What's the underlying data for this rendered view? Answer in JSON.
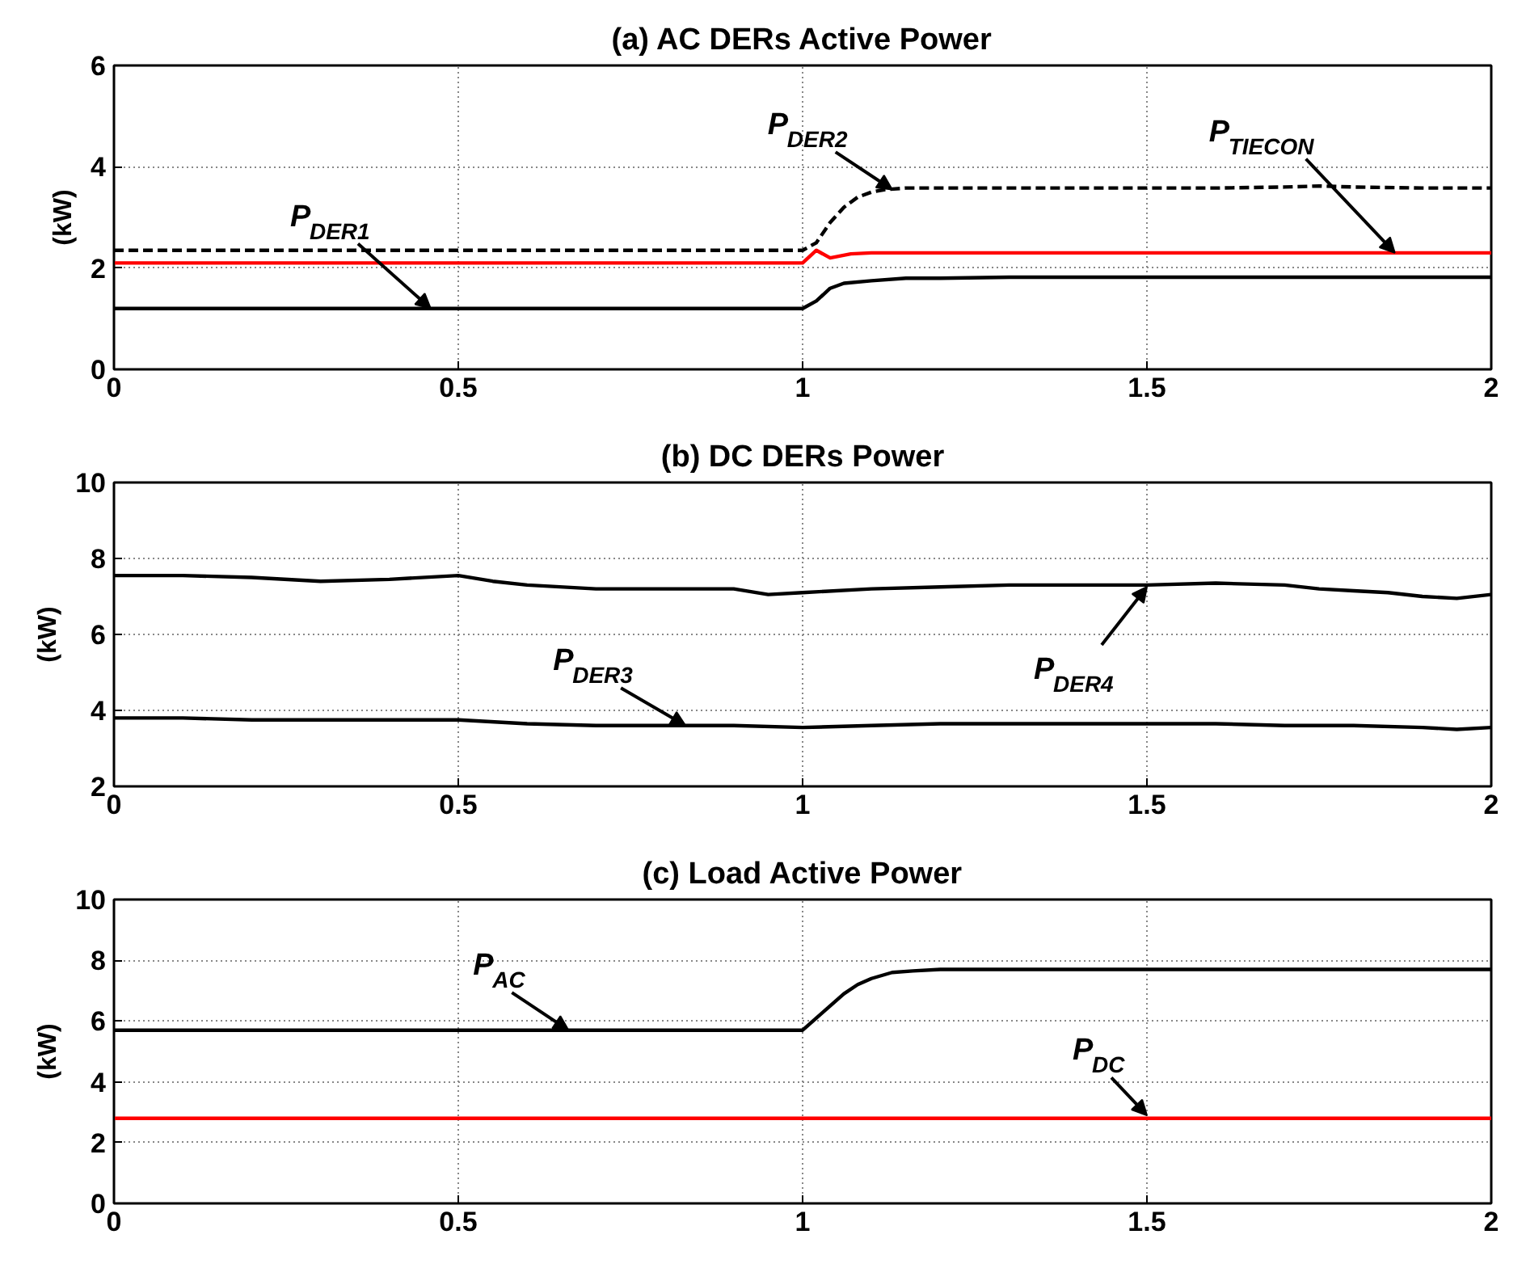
{
  "chart_data": [
    {
      "type": "line",
      "title": "(a) AC DERs Active Power",
      "ylabel": "(kW)",
      "xlim": [
        0,
        2
      ],
      "ylim": [
        0,
        6
      ],
      "xticks": [
        0,
        0.5,
        1,
        1.5,
        2
      ],
      "yticks": [
        0,
        2,
        4,
        6
      ],
      "grid": true,
      "series": [
        {
          "color": "#000000",
          "line_style": "solid",
          "x": [
            0,
            0.1,
            0.2,
            0.3,
            0.4,
            0.5,
            0.6,
            0.7,
            0.8,
            0.9,
            1.0,
            1.02,
            1.04,
            1.06,
            1.1,
            1.15,
            1.2,
            1.3,
            1.4,
            1.5,
            1.6,
            1.7,
            1.8,
            1.9,
            2.0
          ],
          "values": [
            1.2,
            1.2,
            1.2,
            1.2,
            1.2,
            1.2,
            1.2,
            1.2,
            1.2,
            1.2,
            1.2,
            1.35,
            1.6,
            1.7,
            1.75,
            1.8,
            1.8,
            1.82,
            1.82,
            1.82,
            1.82,
            1.82,
            1.82,
            1.82,
            1.82
          ]
        },
        {
          "color": "#000000",
          "line_style": "dashed",
          "x": [
            0,
            0.1,
            0.2,
            0.3,
            0.4,
            0.5,
            0.6,
            0.7,
            0.8,
            0.9,
            1.0,
            1.02,
            1.04,
            1.06,
            1.08,
            1.1,
            1.12,
            1.15,
            1.2,
            1.3,
            1.4,
            1.5,
            1.6,
            1.7,
            1.75,
            1.8,
            1.9,
            2.0
          ],
          "values": [
            2.35,
            2.35,
            2.35,
            2.35,
            2.35,
            2.35,
            2.35,
            2.35,
            2.35,
            2.35,
            2.35,
            2.5,
            2.9,
            3.2,
            3.4,
            3.5,
            3.55,
            3.58,
            3.58,
            3.58,
            3.58,
            3.58,
            3.58,
            3.6,
            3.62,
            3.6,
            3.58,
            3.58
          ]
        },
        {
          "color": "#ff0000",
          "line_style": "solid",
          "x": [
            0,
            0.2,
            0.4,
            0.6,
            0.8,
            1.0,
            1.02,
            1.04,
            1.07,
            1.1,
            1.2,
            1.4,
            1.6,
            1.8,
            2.0
          ],
          "values": [
            2.1,
            2.1,
            2.1,
            2.1,
            2.1,
            2.1,
            2.35,
            2.2,
            2.28,
            2.3,
            2.3,
            2.3,
            2.3,
            2.3,
            2.3
          ]
        }
      ],
      "annotations": [
        {
          "text": "P$_{DER1}$",
          "x": 0.46,
          "y": 1.2
        },
        {
          "text": "P$_{DER2}$",
          "x": 1.13,
          "y": 3.55
        },
        {
          "text": "P$_{TIECON}$",
          "x": 1.86,
          "y": 2.3
        }
      ]
    },
    {
      "type": "line",
      "title": "(b) DC DERs Power",
      "ylabel": "(kW)",
      "xlim": [
        0,
        2
      ],
      "ylim": [
        2,
        10
      ],
      "xticks": [
        0,
        0.5,
        1,
        1.5,
        2
      ],
      "yticks": [
        2,
        4,
        6,
        8,
        10
      ],
      "grid": true,
      "series": [
        {
          "color": "#000000",
          "line_style": "solid",
          "x": [
            0,
            0.1,
            0.2,
            0.3,
            0.4,
            0.5,
            0.55,
            0.6,
            0.7,
            0.8,
            0.9,
            0.95,
            1.0,
            1.1,
            1.2,
            1.3,
            1.4,
            1.5,
            1.6,
            1.7,
            1.75,
            1.8,
            1.85,
            1.9,
            1.95,
            2.0
          ],
          "values": [
            7.55,
            7.55,
            7.5,
            7.4,
            7.45,
            7.55,
            7.4,
            7.3,
            7.2,
            7.2,
            7.2,
            7.05,
            7.1,
            7.2,
            7.25,
            7.3,
            7.3,
            7.3,
            7.35,
            7.3,
            7.2,
            7.15,
            7.1,
            7.0,
            6.95,
            7.05
          ]
        },
        {
          "color": "#000000",
          "line_style": "solid",
          "x": [
            0,
            0.1,
            0.2,
            0.3,
            0.4,
            0.5,
            0.6,
            0.7,
            0.8,
            0.9,
            1.0,
            1.1,
            1.2,
            1.3,
            1.4,
            1.5,
            1.6,
            1.7,
            1.8,
            1.9,
            1.95,
            2.0
          ],
          "values": [
            3.8,
            3.8,
            3.75,
            3.75,
            3.75,
            3.75,
            3.65,
            3.6,
            3.6,
            3.6,
            3.55,
            3.6,
            3.65,
            3.65,
            3.65,
            3.65,
            3.65,
            3.6,
            3.6,
            3.55,
            3.5,
            3.55
          ]
        }
      ],
      "annotations": [
        {
          "text": "P$_{DER3}$",
          "x": 0.83,
          "y": 3.6
        },
        {
          "text": "P$_{DER4}$",
          "x": 1.5,
          "y": 7.25
        }
      ]
    },
    {
      "type": "line",
      "title": "(c) Load Active Power",
      "ylabel": "(kW)",
      "xlim": [
        0,
        2
      ],
      "ylim": [
        0,
        10
      ],
      "xticks": [
        0,
        0.5,
        1,
        1.5,
        2
      ],
      "yticks": [
        0,
        2,
        4,
        6,
        8,
        10
      ],
      "grid": true,
      "series": [
        {
          "color": "#000000",
          "line_style": "solid",
          "x": [
            0,
            0.2,
            0.4,
            0.6,
            0.8,
            1.0,
            1.02,
            1.04,
            1.06,
            1.08,
            1.1,
            1.13,
            1.16,
            1.2,
            1.3,
            1.5,
            1.7,
            2.0
          ],
          "values": [
            5.7,
            5.7,
            5.7,
            5.7,
            5.7,
            5.7,
            6.1,
            6.5,
            6.9,
            7.2,
            7.4,
            7.6,
            7.65,
            7.7,
            7.7,
            7.7,
            7.7,
            7.7
          ]
        },
        {
          "color": "#ff0000",
          "line_style": "solid",
          "x": [
            0,
            0.5,
            1.0,
            1.5,
            2.0
          ],
          "values": [
            2.8,
            2.8,
            2.8,
            2.8,
            2.8
          ]
        }
      ],
      "annotations": [
        {
          "text": "P$_{AC}$",
          "x": 0.66,
          "y": 5.7
        },
        {
          "text": "P$_{DC}$",
          "x": 1.5,
          "y": 2.9
        }
      ]
    }
  ]
}
